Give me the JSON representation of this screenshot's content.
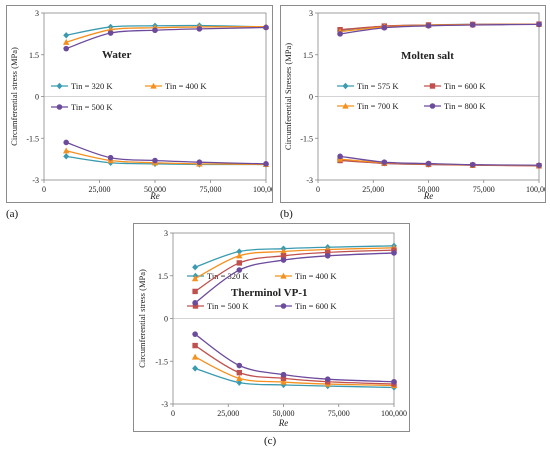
{
  "panel_labels": [
    "(a)",
    "(b)",
    "(c)"
  ],
  "chart_data": [
    {
      "type": "line",
      "title": "Water",
      "xlabel": "Re",
      "ylabel": "Circumferential stress (MPa)",
      "xlim": [
        0,
        100000
      ],
      "ylim": [
        -3,
        3
      ],
      "xticks": [
        0,
        25000,
        50000,
        75000,
        100000
      ],
      "xtick_labels": [
        "0",
        "25,000",
        "50,000",
        "75,000",
        "100,000"
      ],
      "yticks": [
        -3,
        -1.5,
        0,
        1.5,
        3
      ],
      "ytick_labels": [
        "-3",
        "-1.5",
        "0",
        "1.5",
        "3"
      ],
      "x": [
        10000,
        30000,
        50000,
        70000,
        100000
      ],
      "series": [
        {
          "name": "Tin = 320 K",
          "color": "#3a9bb0",
          "marker": "diamond",
          "upper": [
            2.2,
            2.5,
            2.54,
            2.55,
            2.5
          ],
          "lower": [
            -2.15,
            -2.38,
            -2.42,
            -2.44,
            -2.44
          ]
        },
        {
          "name": "Tin = 400 K",
          "color": "#f5901e",
          "marker": "triangle",
          "upper": [
            1.95,
            2.4,
            2.47,
            2.5,
            2.51
          ],
          "lower": [
            -1.95,
            -2.3,
            -2.38,
            -2.42,
            -2.44
          ]
        },
        {
          "name": "Tin = 500 K",
          "color": "#6c4a9c",
          "marker": "circle",
          "upper": [
            1.72,
            2.28,
            2.38,
            2.43,
            2.48
          ],
          "lower": [
            -1.65,
            -2.2,
            -2.3,
            -2.36,
            -2.42
          ]
        }
      ],
      "legend": "inside-left"
    },
    {
      "type": "line",
      "title": "Molten salt",
      "xlabel": "Re",
      "ylabel": "Circumferential Stresses (MPa)",
      "xlim": [
        0,
        100000
      ],
      "ylim": [
        -3,
        3
      ],
      "xticks": [
        0,
        25000,
        50000,
        75000,
        100000
      ],
      "xtick_labels": [
        "0",
        "25,000",
        "50,000",
        "75,000",
        "100,000"
      ],
      "yticks": [
        -3,
        -1.5,
        0,
        1.5,
        3
      ],
      "ytick_labels": [
        "-3",
        "-1.5",
        "0",
        "1.5",
        "3"
      ],
      "x": [
        10000,
        30000,
        50000,
        70000,
        100000
      ],
      "series": [
        {
          "name": "Tin = 575 K",
          "color": "#3a9bb0",
          "marker": "diamond",
          "upper": [
            2.38,
            2.52,
            2.57,
            2.59,
            2.6
          ],
          "lower": [
            -2.28,
            -2.4,
            -2.44,
            -2.46,
            -2.48
          ]
        },
        {
          "name": "Tin = 600 K",
          "color": "#c0504d",
          "marker": "square",
          "upper": [
            2.4,
            2.53,
            2.57,
            2.59,
            2.6
          ],
          "lower": [
            -2.3,
            -2.4,
            -2.44,
            -2.47,
            -2.49
          ]
        },
        {
          "name": "Tin = 700 K",
          "color": "#f5901e",
          "marker": "triangle",
          "upper": [
            2.33,
            2.5,
            2.56,
            2.58,
            2.6
          ],
          "lower": [
            -2.25,
            -2.38,
            -2.42,
            -2.46,
            -2.48
          ]
        },
        {
          "name": "Tin = 800 K",
          "color": "#6c4a9c",
          "marker": "circle",
          "upper": [
            2.25,
            2.47,
            2.54,
            2.57,
            2.59
          ],
          "lower": [
            -2.15,
            -2.36,
            -2.41,
            -2.45,
            -2.47
          ]
        }
      ],
      "legend": "inside-center"
    },
    {
      "type": "line",
      "title": "Therminol VP-1",
      "xlabel": "Re",
      "ylabel": "Circumferential stress (MPa)",
      "xlim": [
        0,
        100000
      ],
      "ylim": [
        -3,
        3
      ],
      "xticks": [
        0,
        25000,
        50000,
        75000,
        100000
      ],
      "xtick_labels": [
        "0",
        "25,000",
        "50,000",
        "75,000",
        "100,000"
      ],
      "yticks": [
        -3,
        -1.5,
        0,
        1.5,
        3
      ],
      "ytick_labels": [
        "-3",
        "-1.5",
        "0",
        "1.5",
        "3"
      ],
      "x": [
        10000,
        30000,
        50000,
        70000,
        100000
      ],
      "series": [
        {
          "name": "Tin = 320 K",
          "color": "#3a9bb0",
          "marker": "diamond",
          "upper": [
            1.8,
            2.35,
            2.45,
            2.5,
            2.55
          ],
          "lower": [
            -1.75,
            -2.25,
            -2.33,
            -2.37,
            -2.42
          ]
        },
        {
          "name": "Tin = 400 K",
          "color": "#f5901e",
          "marker": "triangle",
          "upper": [
            1.4,
            2.2,
            2.35,
            2.42,
            2.48
          ],
          "lower": [
            -1.35,
            -2.1,
            -2.23,
            -2.3,
            -2.35
          ]
        },
        {
          "name": "Tin = 500 K",
          "color": "#c0504d",
          "marker": "square",
          "upper": [
            0.95,
            1.95,
            2.2,
            2.32,
            2.4
          ],
          "lower": [
            -0.95,
            -1.9,
            -2.1,
            -2.22,
            -2.3
          ]
        },
        {
          "name": "Tin = 600 K",
          "color": "#6c4a9c",
          "marker": "circle",
          "upper": [
            0.55,
            1.7,
            2.05,
            2.2,
            2.3
          ],
          "lower": [
            -0.55,
            -1.65,
            -1.97,
            -2.13,
            -2.22
          ]
        }
      ],
      "legend": "inside-center"
    }
  ]
}
